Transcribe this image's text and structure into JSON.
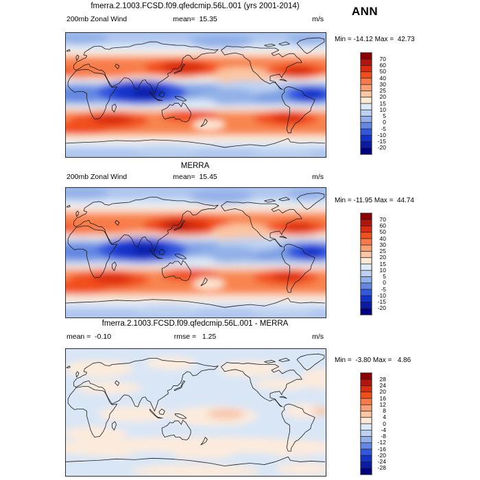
{
  "season": "ANN",
  "palette": {
    "colors": [
      "#8B0000",
      "#B2150E",
      "#D92C10",
      "#F1501C",
      "#F87A4A",
      "#FAA077",
      "#FBC6A3",
      "#FDE8D4",
      "#DDEAF8",
      "#BDD2F0",
      "#93B1E8",
      "#6488E2",
      "#3157DE",
      "#1232C8",
      "#0A1CA6",
      "#010080"
    ],
    "description": "16-step blue-white-red diverging colorbar"
  },
  "panels": [
    {
      "title": "fmerra.2.1003.FCSD.f09.qfedcmip.56L.001 (yrs 2001-2014)",
      "left_label": "200mb Zonal Wind",
      "center_label": "mean=  15.35",
      "right_label": "m/s",
      "minmax": "Min = -14.12 Max =  42.73",
      "colorbar_ticks": [
        "70",
        "60",
        "50",
        "40",
        "30",
        "25",
        "20",
        "15",
        "10",
        "5",
        "0",
        "-5",
        "-10",
        "-15",
        "-20"
      ]
    },
    {
      "title": "MERRA",
      "left_label": "200mb Zonal Wind",
      "center_label": "mean=  15.45",
      "right_label": "m/s",
      "minmax": "Min = -11.95 Max =  44.74",
      "colorbar_ticks": [
        "70",
        "60",
        "50",
        "40",
        "30",
        "25",
        "20",
        "15",
        "10",
        "5",
        "0",
        "-5",
        "-10",
        "-15",
        "-20"
      ]
    },
    {
      "title": "fmerra.2.1003.FCSD.f09.qfedcmip.56L.001 - MERRA",
      "left_label": "mean =  -0.10",
      "center_label": "rmse =   1.25",
      "right_label": "m/s",
      "minmax": "Min =  -3.80 Max =   4.86",
      "colorbar_ticks": [
        "28",
        "24",
        "20",
        "16",
        "12",
        "8",
        "4",
        "0",
        "-4",
        "-8",
        "-12",
        "-16",
        "-20",
        "-24",
        "-28"
      ]
    }
  ],
  "chart_data": [
    {
      "type": "heatmap",
      "subtype": "filled-contour global map",
      "panel": "top",
      "title": "fmerra.2.1003.FCSD.f09.qfedcmip.56L.001 (yrs 2001-2014)",
      "variable": "200mb Zonal Wind",
      "units": "m/s",
      "season": "ANN",
      "mean": 15.35,
      "min": -14.12,
      "max": 42.73,
      "contour_levels": [
        -20,
        -15,
        -10,
        -5,
        0,
        5,
        10,
        15,
        20,
        25,
        30,
        40,
        50,
        60,
        70
      ],
      "legend_position": "right",
      "notes": "Westerly jets (red, >30 m/s) over East Asia/NW Pacific and both hemisphere midlatitudes; tropical easterlies (dark blue, < -10 m/s) centered over Indian Ocean/Indonesia"
    },
    {
      "type": "heatmap",
      "subtype": "filled-contour global map",
      "panel": "middle",
      "title": "MERRA",
      "variable": "200mb Zonal Wind",
      "units": "m/s",
      "season": "ANN",
      "mean": 15.45,
      "min": -11.95,
      "max": 44.74,
      "contour_levels": [
        -20,
        -15,
        -10,
        -5,
        0,
        5,
        10,
        15,
        20,
        25,
        30,
        40,
        50,
        60,
        70
      ],
      "legend_position": "right",
      "notes": "Same field from MERRA reanalysis; nearly identical pattern to model panel"
    },
    {
      "type": "heatmap",
      "subtype": "filled-contour global difference map",
      "panel": "bottom",
      "title": "fmerra.2.1003.FCSD.f09.qfedcmip.56L.001 - MERRA",
      "variable": "200mb Zonal Wind difference",
      "units": "m/s",
      "season": "ANN",
      "mean": -0.1,
      "rmse": 1.25,
      "min": -3.8,
      "max": 4.86,
      "contour_levels": [
        -28,
        -24,
        -20,
        -16,
        -12,
        -8,
        -4,
        0,
        4,
        8,
        12,
        16,
        20,
        24,
        28
      ],
      "legend_position": "right",
      "notes": "Differences within ±4 m/s everywhere: pale blue/cream field with weak positive patch in central equatorial Pacific"
    }
  ]
}
